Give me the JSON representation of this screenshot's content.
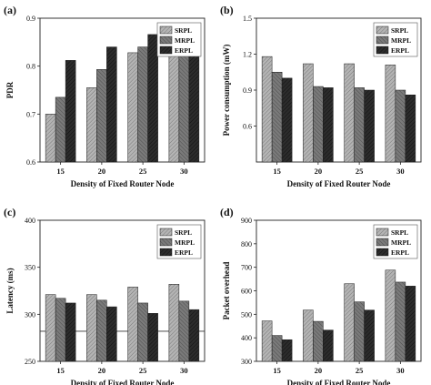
{
  "colors": {
    "s0": "#a8a8a8",
    "s1": "#6e6e6e",
    "s2": "#262626",
    "axis": "#222222"
  },
  "chart_data": [
    {
      "panel": "(a)",
      "type": "bar",
      "categories": [
        "15",
        "20",
        "25",
        "30"
      ],
      "series": [
        {
          "name": "SRPL",
          "values": [
            0.7,
            0.755,
            0.828,
            0.833
          ]
        },
        {
          "name": "MRPL",
          "values": [
            0.735,
            0.793,
            0.84,
            0.853
          ]
        },
        {
          "name": "ERPL",
          "values": [
            0.812,
            0.84,
            0.866,
            0.89
          ]
        }
      ],
      "xlabel": "Density of Fixed Router Node",
      "ylabel": "PDR",
      "ylim": [
        0.6,
        0.9
      ],
      "yticks": [
        "0.6",
        "0.7",
        "0.8",
        "0.9"
      ],
      "legend": "top-right"
    },
    {
      "panel": "(b)",
      "type": "bar",
      "categories": [
        "15",
        "20",
        "25",
        "30"
      ],
      "series": [
        {
          "name": "SRPL",
          "values": [
            1.18,
            1.12,
            1.12,
            1.11
          ]
        },
        {
          "name": "MRPL",
          "values": [
            1.05,
            0.93,
            0.92,
            0.9
          ]
        },
        {
          "name": "ERPL",
          "values": [
            1.0,
            0.92,
            0.9,
            0.86
          ]
        }
      ],
      "xlabel": "Density of Fixed Router Node",
      "ylabel": "Power consumption (mW)",
      "ylim": [
        0.3,
        1.5
      ],
      "yticks": [
        "0.6",
        "0.9",
        "1.2",
        "1.5"
      ],
      "legend": "top-right"
    },
    {
      "panel": "(c)",
      "type": "bar",
      "categories": [
        "15",
        "20",
        "25",
        "30"
      ],
      "series": [
        {
          "name": "SRPL",
          "values": [
            321,
            321,
            329,
            332
          ]
        },
        {
          "name": "MRPL",
          "values": [
            317,
            315,
            312,
            314
          ]
        },
        {
          "name": "ERPL",
          "values": [
            312,
            308,
            301,
            305
          ]
        }
      ],
      "xlabel": "Density of Fixed Router Node",
      "ylabel": "Latency (ms)",
      "ylim": [
        250,
        400
      ],
      "yticks": [
        "250",
        "300",
        "350",
        "400"
      ],
      "legend": "top-right",
      "reference_line": 282
    },
    {
      "panel": "(d)",
      "type": "bar",
      "categories": [
        "15",
        "20",
        "25",
        "30"
      ],
      "series": [
        {
          "name": "SRPL",
          "values": [
            472,
            518,
            630,
            688
          ]
        },
        {
          "name": "MRPL",
          "values": [
            410,
            470,
            553,
            637
          ]
        },
        {
          "name": "ERPL",
          "values": [
            392,
            433,
            518,
            620
          ]
        }
      ],
      "xlabel": "Density of Fixed Router Node",
      "ylabel": "Packet overhead",
      "ylim": [
        300,
        900
      ],
      "yticks": [
        "300",
        "400",
        "500",
        "600",
        "700",
        "800",
        "900"
      ],
      "legend": "top-right"
    }
  ]
}
